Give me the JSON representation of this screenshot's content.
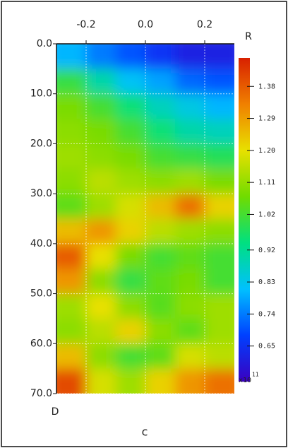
{
  "chart_data": {
    "type": "heatmap",
    "x_label": "R",
    "y_label": "D",
    "caption": "c",
    "x": [
      -0.25,
      -0.15,
      -0.05,
      0.05,
      0.15,
      0.25
    ],
    "y": [
      2.5,
      7.5,
      12.5,
      17.5,
      22.5,
      27.5,
      32.5,
      37.5,
      42.5,
      47.5,
      52.5,
      57.5,
      62.5,
      67.5
    ],
    "z": [
      [
        0.8,
        0.74,
        0.7,
        0.66,
        0.62,
        0.62
      ],
      [
        1.0,
        0.9,
        0.82,
        0.78,
        0.72,
        0.7
      ],
      [
        1.08,
        1.02,
        0.95,
        0.88,
        0.84,
        0.8
      ],
      [
        1.1,
        1.08,
        1.02,
        0.95,
        0.9,
        0.88
      ],
      [
        1.12,
        1.1,
        1.08,
        1.02,
        1.0,
        0.98
      ],
      [
        1.1,
        1.15,
        1.12,
        1.1,
        1.12,
        1.08
      ],
      [
        1.05,
        1.12,
        1.18,
        1.25,
        1.35,
        1.22
      ],
      [
        1.25,
        1.3,
        1.22,
        1.15,
        1.12,
        1.1
      ],
      [
        1.38,
        1.2,
        1.08,
        1.02,
        1.05,
        1.02
      ],
      [
        1.3,
        1.1,
        1.0,
        1.05,
        1.08,
        1.02
      ],
      [
        1.12,
        1.2,
        1.1,
        1.04,
        1.1,
        1.12
      ],
      [
        1.1,
        1.15,
        1.22,
        1.1,
        1.05,
        1.12
      ],
      [
        1.25,
        1.1,
        1.02,
        1.05,
        1.18,
        1.15
      ],
      [
        1.4,
        1.18,
        1.12,
        1.22,
        1.3,
        1.35
      ]
    ],
    "xlim": [
      -0.3,
      0.3
    ],
    "xticks": [
      -0.2,
      {
        "value": 0,
        "label": "0.0"
      },
      0.2
    ],
    "ylim": [
      0,
      70
    ],
    "yticks": [
      {
        "value": 0,
        "label": "0.0"
      },
      {
        "value": 10,
        "label": "10.0"
      },
      {
        "value": 20,
        "label": "20.0"
      },
      {
        "value": 30,
        "label": "30.0"
      },
      {
        "value": 40,
        "label": "40.0"
      },
      {
        "value": 50,
        "label": "50.0"
      },
      {
        "value": 60,
        "label": "60.0"
      },
      {
        "value": 70,
        "label": "70.0"
      }
    ],
    "y_inverted": true,
    "grid": true,
    "clim": [
      0.55,
      1.46
    ],
    "cticks": [
      1.38,
      1.29,
      {
        "value": 1.2,
        "label": "1.20"
      },
      1.11,
      1.02,
      0.92,
      0.83,
      0.74,
      0.65
    ],
    "colorbar_unit": "x10",
    "colorbar_exponent": "11",
    "colormap": [
      "#3a00c0",
      "#0040ff",
      "#00c0ff",
      "#00e080",
      "#70dc00",
      "#e8e000",
      "#f08000",
      "#d82000"
    ]
  }
}
